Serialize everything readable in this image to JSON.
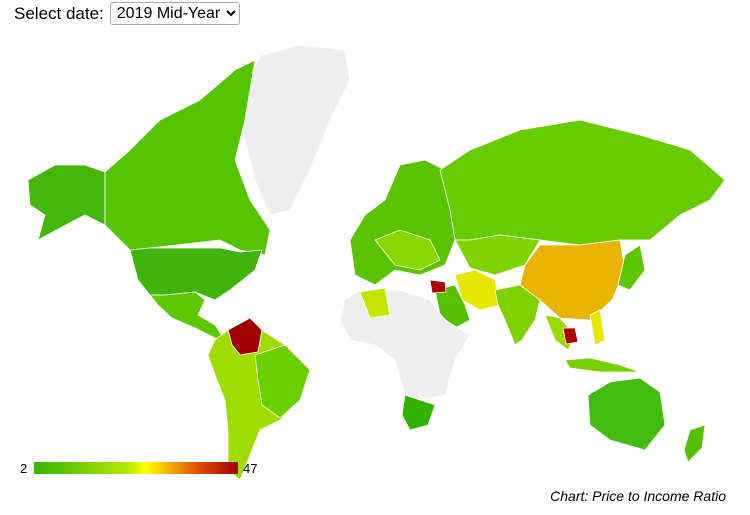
{
  "date_select": {
    "label": "Select date:",
    "selected": "2019 Mid-Year"
  },
  "legend": {
    "min": 2,
    "max": 47
  },
  "caption": "Chart: Price to Income Ratio"
}
